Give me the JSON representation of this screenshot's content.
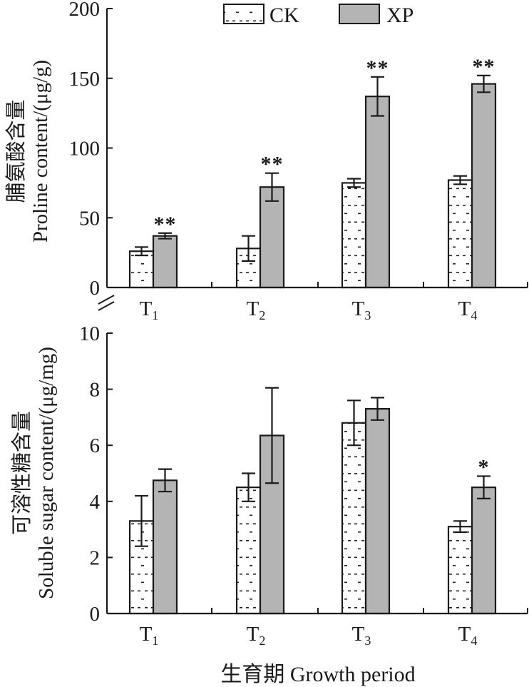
{
  "chart_data": [
    {
      "type": "bar",
      "title": "",
      "categories": [
        "T1",
        "T2",
        "T3",
        "T4"
      ],
      "category_labels": [
        {
          "main": "T",
          "sub": "1"
        },
        {
          "main": "T",
          "sub": "2"
        },
        {
          "main": "T",
          "sub": "3"
        },
        {
          "main": "T",
          "sub": "4"
        }
      ],
      "ylabel_cn": "脯氨酸含量",
      "ylabel_en": "Proline content/(μg/g)",
      "ylim": [
        0,
        200
      ],
      "yticks": [
        0,
        50,
        100,
        150,
        200
      ],
      "legend": {
        "position": "top",
        "entries": [
          "CK",
          "XP"
        ]
      },
      "series": [
        {
          "name": "CK",
          "fill": "dotted",
          "values": [
            26,
            28,
            75,
            77
          ],
          "errors": [
            3,
            9,
            3,
            3
          ],
          "significance": [
            "",
            "",
            "",
            ""
          ]
        },
        {
          "name": "XP",
          "fill": "#b4b4b4",
          "values": [
            37,
            72,
            137,
            146
          ],
          "errors": [
            2,
            10,
            14,
            6
          ],
          "significance": [
            "**",
            "**",
            "**",
            "**"
          ]
        }
      ]
    },
    {
      "type": "bar",
      "title": "",
      "categories": [
        "T1",
        "T2",
        "T3",
        "T4"
      ],
      "category_labels": [
        {
          "main": "T",
          "sub": "1"
        },
        {
          "main": "T",
          "sub": "2"
        },
        {
          "main": "T",
          "sub": "3"
        },
        {
          "main": "T",
          "sub": "4"
        }
      ],
      "ylabel_cn": "可溶性糖含量",
      "ylabel_en": "Soluble sugar content/(μg/mg)",
      "xlabel": "生育期 Growth period",
      "ylim": [
        0,
        10
      ],
      "yticks": [
        0,
        2,
        4,
        6,
        8,
        10
      ],
      "series": [
        {
          "name": "CK",
          "fill": "dotted",
          "values": [
            3.3,
            4.5,
            6.8,
            3.1
          ],
          "errors": [
            0.9,
            0.5,
            0.8,
            0.2
          ],
          "significance": [
            "",
            "",
            "",
            ""
          ]
        },
        {
          "name": "XP",
          "fill": "#b4b4b4",
          "values": [
            4.75,
            6.35,
            7.3,
            4.5
          ],
          "errors": [
            0.4,
            1.7,
            0.4,
            0.4
          ],
          "significance": [
            "",
            "",
            "",
            "*"
          ]
        }
      ]
    }
  ],
  "colors": {
    "axis": "#1a1a1a",
    "xp_fill": "#b4b4b4",
    "ck_fill": "#ffffff"
  }
}
